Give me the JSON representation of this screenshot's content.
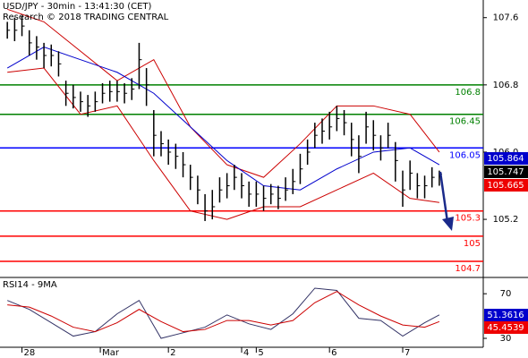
{
  "chart_data": [
    {
      "type": "ohlc",
      "title": "USD/JPY - 30min - 13:41:30 (CET)",
      "subtitle": "Research © 2018 TRADING CENTRAL",
      "color": "#000000",
      "high": [
        107.55,
        107.6,
        107.62,
        107.45,
        107.38,
        107.3,
        107.28,
        107.2,
        106.85,
        106.8,
        106.72,
        106.68,
        106.72,
        106.82,
        106.85,
        106.85,
        106.82,
        106.88,
        107.3,
        107.0,
        106.5,
        106.25,
        106.15,
        106.1,
        106.0,
        105.85,
        105.72,
        105.5,
        105.55,
        105.7,
        105.75,
        105.85,
        105.75,
        105.65,
        105.65,
        105.6,
        105.62,
        105.6,
        105.7,
        105.8,
        105.98,
        106.15,
        106.35,
        106.4,
        106.48,
        106.55,
        106.5,
        106.35,
        106.2,
        106.48,
        106.38,
        106.2,
        106.35,
        106.12,
        105.78,
        105.9,
        105.75,
        105.72,
        105.82,
        105.78
      ],
      "low": [
        107.35,
        107.32,
        107.38,
        107.15,
        107.1,
        107.0,
        107.02,
        106.9,
        106.55,
        106.52,
        106.48,
        106.42,
        106.48,
        106.58,
        106.6,
        106.6,
        106.58,
        106.62,
        106.75,
        106.55,
        105.95,
        105.95,
        105.85,
        105.8,
        105.7,
        105.55,
        105.38,
        105.18,
        105.2,
        105.4,
        105.45,
        105.55,
        105.45,
        105.35,
        105.35,
        105.3,
        105.38,
        105.32,
        105.42,
        105.5,
        105.62,
        105.85,
        106.05,
        106.1,
        106.15,
        106.25,
        106.2,
        105.95,
        105.75,
        106.1,
        106.02,
        105.9,
        106.05,
        105.65,
        105.35,
        105.55,
        105.45,
        105.45,
        105.58,
        105.6
      ],
      "close": [
        107.45,
        107.45,
        107.5,
        107.3,
        107.25,
        107.15,
        107.15,
        107.05,
        106.7,
        106.65,
        106.6,
        106.55,
        106.6,
        106.7,
        106.72,
        106.72,
        106.7,
        106.75,
        107.1,
        106.8,
        106.2,
        106.1,
        106.0,
        105.95,
        105.85,
        105.7,
        105.55,
        105.3,
        105.35,
        105.55,
        105.6,
        105.7,
        105.6,
        105.5,
        105.5,
        105.45,
        105.5,
        105.45,
        105.55,
        105.65,
        105.8,
        106.0,
        106.2,
        106.25,
        106.3,
        106.4,
        106.35,
        106.15,
        105.95,
        106.3,
        106.2,
        106.05,
        106.2,
        105.9,
        105.55,
        105.75,
        105.6,
        105.6,
        105.7,
        105.74
      ],
      "overlays": [
        {
          "color": "#cc0000",
          "x": [
            0,
            5,
            10,
            15,
            20,
            25,
            30,
            35,
            40,
            45,
            50,
            55,
            59
          ],
          "values": [
            107.7,
            107.55,
            107.2,
            106.85,
            107.1,
            106.3,
            105.85,
            105.7,
            106.1,
            106.55,
            106.55,
            106.45,
            106.0
          ]
        },
        {
          "color": "#cc0000",
          "x": [
            0,
            5,
            10,
            15,
            20,
            25,
            30,
            35,
            40,
            45,
            50,
            55,
            59
          ],
          "values": [
            106.95,
            107.0,
            106.45,
            106.55,
            105.9,
            105.3,
            105.2,
            105.35,
            105.35,
            105.55,
            105.75,
            105.45,
            105.4
          ]
        },
        {
          "color": "#0000cc",
          "x": [
            0,
            5,
            10,
            15,
            20,
            25,
            30,
            35,
            40,
            45,
            50,
            55,
            59
          ],
          "values": [
            107.0,
            107.25,
            107.1,
            106.95,
            106.7,
            106.3,
            105.9,
            105.6,
            105.55,
            105.8,
            106.0,
            106.05,
            105.85
          ]
        }
      ],
      "levels": [
        {
          "value": 106.8,
          "color": "#008000"
        },
        {
          "value": 106.45,
          "color": "#008000"
        },
        {
          "value": 106.05,
          "color": "#0000ff"
        },
        {
          "value": 105.3,
          "color": "#ff0000"
        },
        {
          "value": 105,
          "color": "#ff0000"
        },
        {
          "value": 104.7,
          "color": "#ff0000"
        }
      ],
      "price_labels": [
        {
          "value": 105.864,
          "color": "#0000cc"
        },
        {
          "value": 105.747,
          "color": "#000000"
        },
        {
          "value": 105.665,
          "color": "#ee0000"
        }
      ],
      "xlim": [
        -1,
        65
      ],
      "xticks": [
        {
          "value": 2,
          "label": "28"
        },
        {
          "value": 12.7,
          "label": "Mar"
        },
        {
          "value": 22,
          "label": "2"
        },
        {
          "value": 32,
          "label": "4"
        },
        {
          "value": 34,
          "label": "5"
        },
        {
          "value": 44,
          "label": "6"
        },
        {
          "value": 54,
          "label": "7"
        }
      ],
      "ylim": [
        104.53,
        107.81
      ],
      "yticks": [
        107.6,
        106.8,
        {
          "value": 106,
          "label": "106.0"
        },
        105.2
      ]
    },
    {
      "type": "line",
      "title": "RSI14 - 9MA",
      "x": [
        0,
        3,
        6,
        9,
        12,
        15,
        18,
        21,
        24,
        27,
        30,
        33,
        36,
        39,
        42,
        45,
        48,
        51,
        54,
        57,
        59
      ],
      "series": [
        {
          "color": "#333366",
          "values": [
            64,
            56,
            44,
            32,
            36,
            52,
            64,
            30,
            35,
            40,
            51,
            43,
            38,
            52,
            75,
            73,
            48,
            46,
            32,
            44,
            51
          ]
        },
        {
          "color": "#cc0000",
          "values": [
            60,
            58,
            50,
            40,
            36,
            44,
            56,
            45,
            36,
            38,
            46,
            46,
            42,
            46,
            62,
            72,
            60,
            50,
            42,
            40,
            45
          ]
        }
      ],
      "price_labels": [
        {
          "value": 51.3616,
          "color": "#0000cc"
        },
        {
          "value": 45.4539,
          "color": "#ee0000"
        }
      ],
      "xlim": [
        -1,
        65
      ],
      "ylim": [
        22,
        83
      ],
      "yticks": [
        70,
        30
      ]
    }
  ]
}
